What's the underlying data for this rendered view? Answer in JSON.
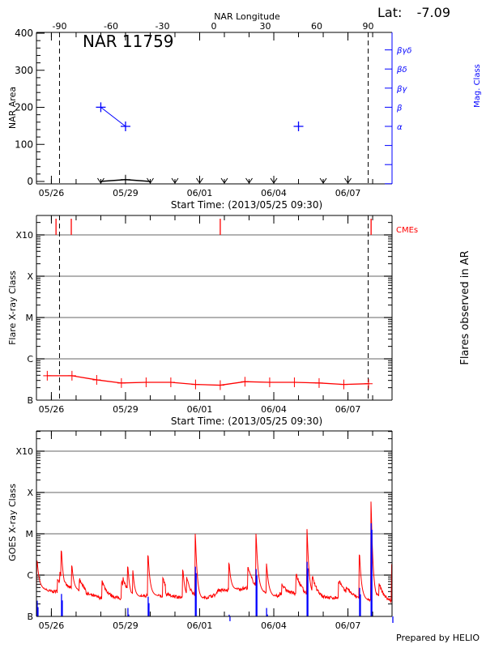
{
  "header": {
    "lat_label": "Lat:",
    "lat_value": "-7.09",
    "prepared_by": "Prepared by HELIO"
  },
  "colors": {
    "axis": "#000000",
    "mag_class": "#0000ff",
    "flare": "#ff0000",
    "goes_long": "#ff0000",
    "goes_short": "#0000ff",
    "grid": "#999999"
  },
  "chart_data": [
    {
      "type": "line",
      "title": "NAR 11759",
      "top_axis_label": "NAR Longitude",
      "top_axis_ticks": [
        "-90",
        "-60",
        "-30",
        "0",
        "30",
        "60",
        "90"
      ],
      "xlabel": "Start Time: (2013/05/25 09:30)",
      "x_range": [
        "2013-05-25T09:30",
        "2013-06-08T18:50"
      ],
      "x_tick_labels": [
        "05/26",
        "05/29",
        "06/01",
        "06/04",
        "06/07"
      ],
      "limb_crossings_longitude": [
        -90,
        90
      ],
      "ylabel": "NAR Area",
      "ylim": [
        0,
        400
      ],
      "y_tick_labels": [
        "0",
        "100",
        "200",
        "300",
        "400"
      ],
      "y2label": "Mag. Class",
      "y2_categories": [
        "α",
        "β",
        "βγ",
        "βδ",
        "βγδ"
      ],
      "series": [
        {
          "points": [
            {
              "x": "2013-05-28T00:00",
              "y": 0
            },
            {
              "x": "2013-05-29T00:00",
              "y": 5
            },
            {
              "x": "2013-05-30T00:00",
              "y": 0
            },
            {
              "x": "2013-05-31T00:00",
              "y": 0
            },
            {
              "x": "2013-06-01T00:00",
              "y": 0
            },
            {
              "x": "2013-06-02T00:00",
              "y": 0
            },
            {
              "x": "2013-06-03T00:00",
              "y": 0
            },
            {
              "x": "2013-06-04T00:00",
              "y": 0
            },
            {
              "x": "2013-06-06T00:00",
              "y": 0
            },
            {
              "x": "2013-06-07T00:00",
              "y": 0
            }
          ]
        },
        {
          "axis": "y2",
          "points": [
            {
              "x": "2013-05-28T00:00",
              "y": "β"
            },
            {
              "x": "2013-05-29T00:00",
              "y": "α"
            },
            {
              "x": "2013-06-05T00:00",
              "y": "α"
            }
          ]
        }
      ]
    },
    {
      "type": "line",
      "xlabel": "Start Time: (2013/05/25 09:30)",
      "x_tick_labels": [
        "05/26",
        "05/29",
        "06/01",
        "06/04",
        "06/07"
      ],
      "ylabel": "Flare X-ray Class",
      "y_scale": "log",
      "y_tick_labels": [
        "B",
        "C",
        "M",
        "X",
        "X10"
      ],
      "y2label": "Flares observed in AR",
      "grid": true,
      "cme_label": "CMEs",
      "cmes": [
        "2013-05-26T04:30",
        "2013-05-26T19:20",
        "2013-06-01T20:00",
        "2013-06-07T22:30"
      ],
      "series": [
        {
          "points": [
            {
              "x": "2013-05-25T20:00",
              "y": "B3.9"
            },
            {
              "x": "2013-05-26T20:00",
              "y": "B3.9"
            },
            {
              "x": "2013-05-27T20:00",
              "y": "B3.1"
            },
            {
              "x": "2013-05-28T20:00",
              "y": "B2.6"
            },
            {
              "x": "2013-05-29T20:00",
              "y": "B2.7"
            },
            {
              "x": "2013-05-30T20:00",
              "y": "B2.7"
            },
            {
              "x": "2013-05-31T20:00",
              "y": "B2.4"
            },
            {
              "x": "2013-06-01T20:00",
              "y": "B2.3"
            },
            {
              "x": "2013-06-02T20:00",
              "y": "B2.8"
            },
            {
              "x": "2013-06-03T20:00",
              "y": "B2.7"
            },
            {
              "x": "2013-06-04T20:00",
              "y": "B2.7"
            },
            {
              "x": "2013-06-05T20:00",
              "y": "B2.6"
            },
            {
              "x": "2013-06-06T20:00",
              "y": "B2.4"
            },
            {
              "x": "2013-06-07T20:00",
              "y": "B2.5"
            }
          ]
        }
      ]
    },
    {
      "type": "line",
      "x_tick_labels": [
        "05/26",
        "05/29",
        "06/01",
        "06/04",
        "06/07"
      ],
      "ylabel": "GOES X-ray Class",
      "y_scale": "log",
      "y_tick_labels": [
        "B",
        "C",
        "M",
        "X",
        "X10"
      ],
      "grid": true,
      "long_channel_background": [
        {
          "x": "2013-05-25T09:30",
          "y": "B5.0"
        },
        {
          "x": "2013-05-26T00:00",
          "y": "B4.0"
        },
        {
          "x": "2013-05-27T00:00",
          "y": "B4.2"
        },
        {
          "x": "2013-05-28T00:00",
          "y": "B2.8"
        },
        {
          "x": "2013-05-29T00:00",
          "y": "B2.6"
        },
        {
          "x": "2013-05-30T00:00",
          "y": "B3.2"
        },
        {
          "x": "2013-05-31T00:00",
          "y": "B3.0"
        },
        {
          "x": "2013-06-01T00:00",
          "y": "B2.4"
        },
        {
          "x": "2013-06-02T00:00",
          "y": "B4.0"
        },
        {
          "x": "2013-06-03T00:00",
          "y": "B5.0"
        },
        {
          "x": "2013-06-04T00:00",
          "y": "B3.0"
        },
        {
          "x": "2013-06-05T00:00",
          "y": "B3.5"
        },
        {
          "x": "2013-06-06T00:00",
          "y": "B2.6"
        },
        {
          "x": "2013-06-07T00:00",
          "y": "B3.0"
        },
        {
          "x": "2013-06-08T00:00",
          "y": "B2.3"
        },
        {
          "x": "2013-06-08T18:50",
          "y": "B2.1"
        }
      ],
      "long_channel_peaks": [
        {
          "x": "2013-05-25T10:15",
          "y": "C2.2"
        },
        {
          "x": "2013-05-26T09:50",
          "y": "C3.9"
        },
        {
          "x": "2013-05-26T20:00",
          "y": "C1.7"
        },
        {
          "x": "2013-05-29T02:20",
          "y": "C1.6"
        },
        {
          "x": "2013-05-29T07:10",
          "y": "C1.3"
        },
        {
          "x": "2013-05-29T22:00",
          "y": "C3.0"
        },
        {
          "x": "2013-05-31T07:50",
          "y": "C1.3"
        },
        {
          "x": "2013-05-31T19:50",
          "y": "M1.0"
        },
        {
          "x": "2013-06-02T04:40",
          "y": "C1.9"
        },
        {
          "x": "2013-06-03T06:50",
          "y": "M1.0"
        },
        {
          "x": "2013-06-03T17:00",
          "y": "C1.9"
        },
        {
          "x": "2013-06-05T08:20",
          "y": "M1.3"
        },
        {
          "x": "2013-06-07T11:20",
          "y": "C3.1"
        },
        {
          "x": "2013-06-07T22:30",
          "y": "M6.0"
        },
        {
          "x": "2013-06-08T18:50",
          "y": "C1.8"
        }
      ],
      "short_channel_peaks": [
        {
          "x": "2013-05-25T10:15",
          "y": "B2.4"
        },
        {
          "x": "2013-05-26T09:50",
          "y": "B3.5"
        },
        {
          "x": "2013-05-29T02:20",
          "y": "B1.6"
        },
        {
          "x": "2013-05-29T22:00",
          "y": "B3.0"
        },
        {
          "x": "2013-05-31T19:50",
          "y": "C1.6"
        },
        {
          "x": "2013-06-02T04:40",
          "y": "B1.1"
        },
        {
          "x": "2013-06-03T06:50",
          "y": "C1.4"
        },
        {
          "x": "2013-06-03T17:00",
          "y": "B1.6"
        },
        {
          "x": "2013-06-05T08:20",
          "y": "C2.1"
        },
        {
          "x": "2013-06-07T11:20",
          "y": "B4.9"
        },
        {
          "x": "2013-06-07T22:30",
          "y": "M1.8"
        },
        {
          "x": "2013-06-08T18:50",
          "y": "B1.0"
        }
      ]
    }
  ]
}
